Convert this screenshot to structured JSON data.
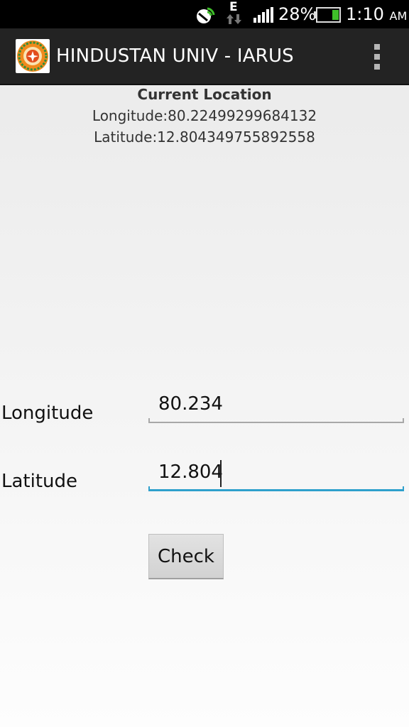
{
  "status_bar": {
    "network_type": "E",
    "battery_percent": "28%",
    "time": "1:10",
    "ampm": "AM",
    "icons": [
      "wifi-tether-icon",
      "data-arrows-icon",
      "signal-icon",
      "battery-icon"
    ]
  },
  "app_bar": {
    "title": "HINDUSTAN UNIV - IARUS",
    "logo": "university-logo",
    "menu_icon": "overflow-menu-icon"
  },
  "current_location": {
    "title": "Current Location",
    "longitude": "Longitude:80.2249929968413​2",
    "latitude": "Latitude:12.804349755892558"
  },
  "form": {
    "longitude_label": "Longitude",
    "longitude_value": "80.234",
    "latitude_label": "Latitude",
    "latitude_value": "12.804",
    "check_label": "Check"
  },
  "colors": {
    "status_bar": "#000000",
    "app_bar": "#232323",
    "focus_accent": "#2ea0cc",
    "battery_fill": "#3fbf2a"
  }
}
